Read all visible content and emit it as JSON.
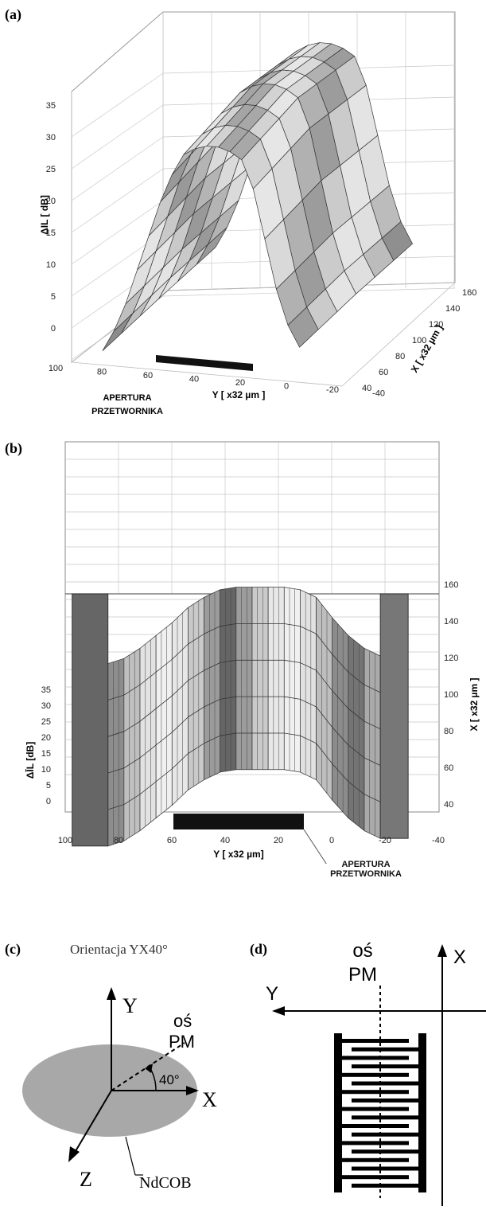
{
  "panels": {
    "a": {
      "label": "(a)"
    },
    "b": {
      "label": "(b)"
    },
    "c": {
      "label": "(c)",
      "title": "Orientacja YX40°",
      "axis_y": "Y",
      "axis_x": "X",
      "axis_z": "Z",
      "pm_line1": "oś",
      "pm_line2": "PM",
      "angle": "40°",
      "crystal": "NdCOB"
    },
    "d": {
      "label": "(d)",
      "axis_y": "Y",
      "axis_x": "X",
      "pm_line1": "oś",
      "pm_line2": "PM"
    }
  },
  "chart_data": [
    {
      "type": "surface",
      "panel": "a",
      "view": "3d-perspective",
      "zlabel": "ΔIL [ dB]",
      "ylabel": "Y  [ x32 µm ]",
      "xlabel": "X  [ x32 µm ]",
      "z_ticks": [
        "0",
        "5",
        "10",
        "15",
        "20",
        "25",
        "30",
        "35"
      ],
      "y_ticks": [
        "100",
        "80",
        "60",
        "40",
        "20",
        "0",
        "-20",
        "-40"
      ],
      "x_ticks": [
        "40",
        "60",
        "80",
        "100",
        "120",
        "140",
        "160"
      ],
      "zlim": [
        0,
        35
      ],
      "ylim": [
        100,
        -40
      ],
      "xlim": [
        40,
        160
      ],
      "annotation": {
        "line1": "APERTURA",
        "line2": "PRZETWORNIKA",
        "y_range": [
          60,
          10
        ]
      },
      "y": [
        84,
        78,
        72,
        66,
        60,
        54,
        48,
        42,
        36,
        30,
        24,
        18,
        12,
        6,
        0,
        -6,
        -12,
        -18
      ],
      "z_profile": [
        2,
        5,
        9,
        14,
        19,
        24,
        28,
        31,
        32,
        32.5,
        32.5,
        32,
        31,
        27,
        20,
        13,
        8,
        5
      ]
    },
    {
      "type": "surface",
      "panel": "b",
      "view": "top-oblique",
      "zlabel": "ΔĪL [dB]",
      "ylabel": "Y  [ x32 µm]",
      "xlabel": "X [ x32 µm ]",
      "z_ticks": [
        "0",
        "5",
        "10",
        "15",
        "20",
        "25",
        "30",
        "35"
      ],
      "y_ticks": [
        "100",
        "80",
        "60",
        "40",
        "20",
        "0",
        "-20",
        "-40"
      ],
      "x_ticks": [
        "40",
        "60",
        "80",
        "100",
        "120",
        "140",
        "160"
      ],
      "zlim": [
        0,
        35
      ],
      "ylim": [
        100,
        -40
      ],
      "xlim": [
        40,
        160
      ],
      "annotation": {
        "line1": "APERTURA",
        "line2": "PRZETWORNIKA",
        "y_range": [
          60,
          10
        ]
      },
      "y": [
        84,
        78,
        72,
        66,
        60,
        54,
        48,
        42,
        36,
        30,
        24,
        18,
        12,
        6,
        0,
        -6,
        -12,
        -18
      ],
      "z_profile": [
        2,
        4,
        8,
        13,
        18,
        24,
        28,
        31,
        32,
        32,
        32,
        32,
        31,
        28,
        20,
        13,
        8,
        5
      ]
    }
  ]
}
